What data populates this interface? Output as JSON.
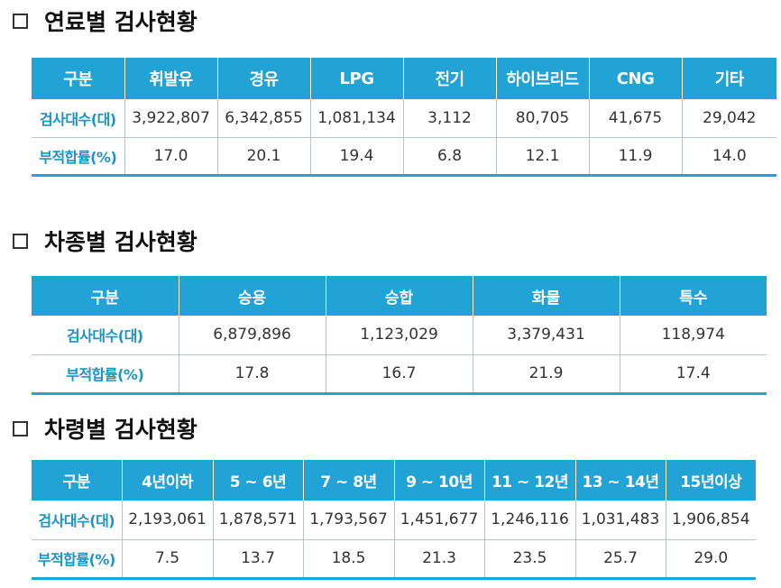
{
  "sections": [
    {
      "title": "연료별 검사현황",
      "headers": [
        "구분",
        "휘발유",
        "경유",
        "LPG",
        "전기",
        "하이브리드",
        "CNG",
        "기타"
      ],
      "rows": [
        {
          "label": "검사대수(대)",
          "values": [
            "3,922,807",
            "6,342,855",
            "1,081,134",
            "3,112",
            "80,705",
            "41,675",
            "29,042"
          ]
        },
        {
          "label": "부적합률(%)",
          "values": [
            "17.0",
            "20.1",
            "19.4",
            "6.8",
            "12.1",
            "11.9",
            "14.0"
          ]
        }
      ]
    },
    {
      "title": "차종별 검사현황",
      "headers": [
        "구분",
        "승용",
        "승합",
        "화물",
        "특수"
      ],
      "rows": [
        {
          "label": "검사대수(대)",
          "values": [
            "6,879,896",
            "1,123,029",
            "3,379,431",
            "118,974"
          ]
        },
        {
          "label": "부적합률(%)",
          "values": [
            "17.8",
            "16.7",
            "21.9",
            "17.4"
          ]
        }
      ]
    },
    {
      "title": "차령별 검사현황",
      "headers": [
        "구분",
        "4년이하",
        "5 ~ 6년",
        "7 ~ 8년",
        "9 ~ 10년",
        "11 ~ 12년",
        "13 ~ 14년",
        "15년이상"
      ],
      "rows": [
        {
          "label": "검사대수(대)",
          "values": [
            "2,193,061",
            "1,878,571",
            "1,793,567",
            "1,451,677",
            "1,246,116",
            "1,031,483",
            "1,906,854"
          ]
        },
        {
          "label": "부적합률(%)",
          "values": [
            "7.5",
            "13.7",
            "18.5",
            "21.3",
            "23.5",
            "25.7",
            "29.0"
          ]
        }
      ]
    }
  ],
  "colors": {
    "header_bg": "#21a3d5",
    "row_label": "#1994c6",
    "border": "#b9c3c8"
  }
}
